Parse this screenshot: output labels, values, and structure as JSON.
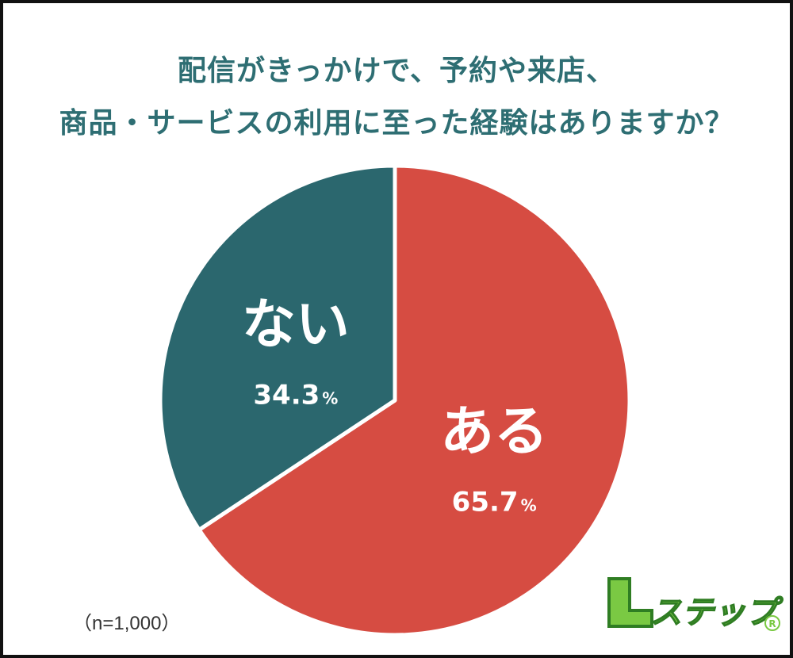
{
  "colors": {
    "title": "#2e6e73",
    "aru": "#d64c42",
    "nai": "#2b676e",
    "separator": "#ffffff",
    "logo_green": "#7ac943"
  },
  "title": {
    "line1": "配信がきっかけで、予約や来店、",
    "line2": "商品・サービスの利用に至った経験はありますか？"
  },
  "chart_data": {
    "type": "pie",
    "start_angle_deg": 0,
    "direction": "clockwise",
    "slices": [
      {
        "label": "ある",
        "value": 65.7,
        "display": "65.7",
        "unit": "%",
        "color": "#d64c42"
      },
      {
        "label": "ない",
        "value": 34.3,
        "display": "34.3",
        "unit": "%",
        "color": "#2b676e"
      }
    ],
    "note": "（n=1,000）"
  },
  "logo": {
    "l": "L",
    "text": "ステップ",
    "mark": "®"
  }
}
